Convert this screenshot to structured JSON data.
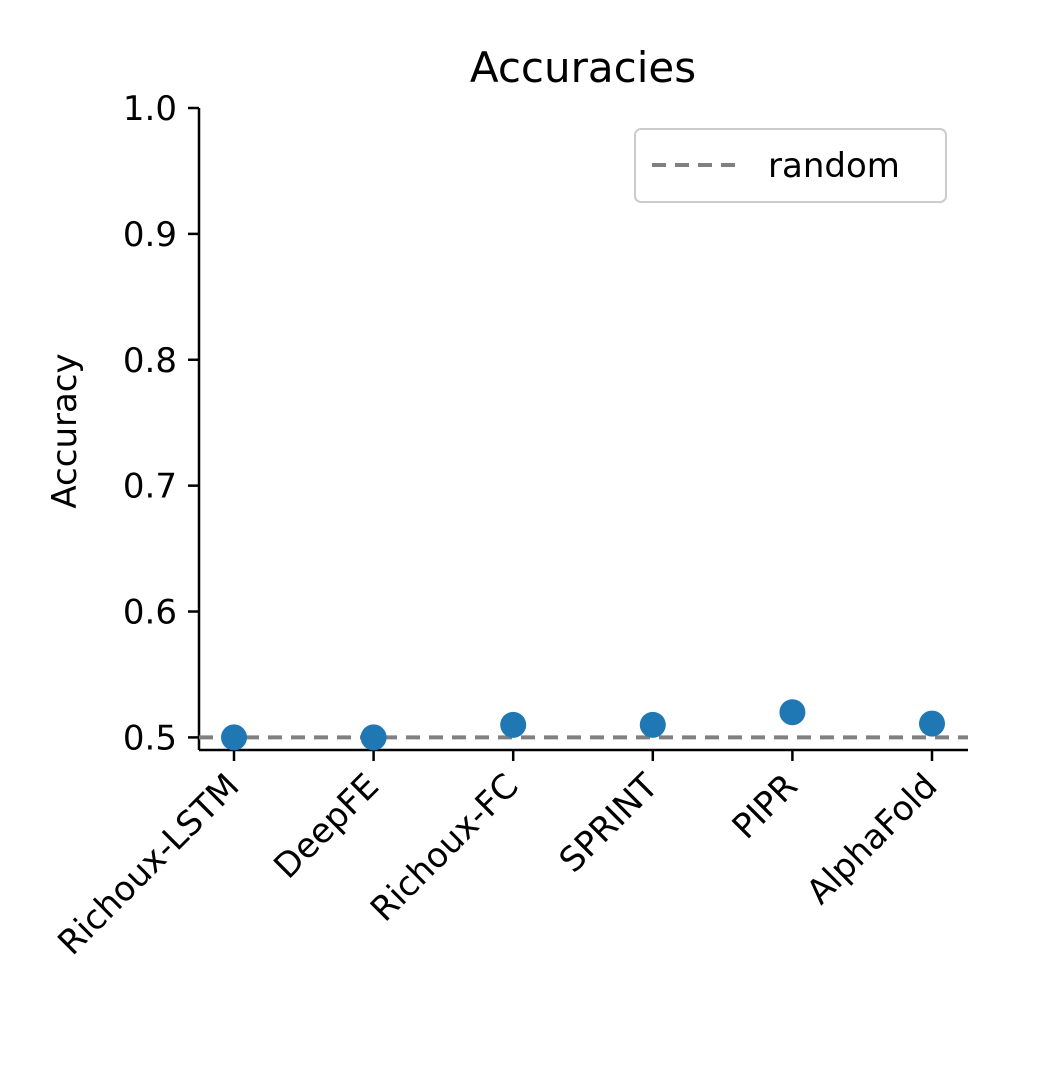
{
  "chart_data": {
    "type": "scatter",
    "title": "Accuracies",
    "xlabel": "",
    "ylabel": "Accuracy",
    "categories": [
      "Richoux-LSTM",
      "DeepFE",
      "Richoux-FC",
      "SPRINT",
      "PIPR",
      "AlphaFold"
    ],
    "series": [
      {
        "values": [
          0.5,
          0.5,
          0.51,
          0.51,
          0.52,
          0.511
        ],
        "color": "#1f77b4"
      }
    ],
    "reference_line": {
      "name": "random",
      "value": 0.5,
      "color": "#808080",
      "style": "dashed"
    },
    "ylim": [
      0.49,
      1.0
    ],
    "yticks": [
      "0.5",
      "0.6",
      "0.7",
      "0.8",
      "0.9",
      "1.0"
    ],
    "ytick_values": [
      0.5,
      0.6,
      0.7,
      0.8,
      0.9,
      1.0
    ],
    "legend": {
      "placement": "top-right",
      "entries": [
        "random"
      ]
    },
    "grid": false
  }
}
